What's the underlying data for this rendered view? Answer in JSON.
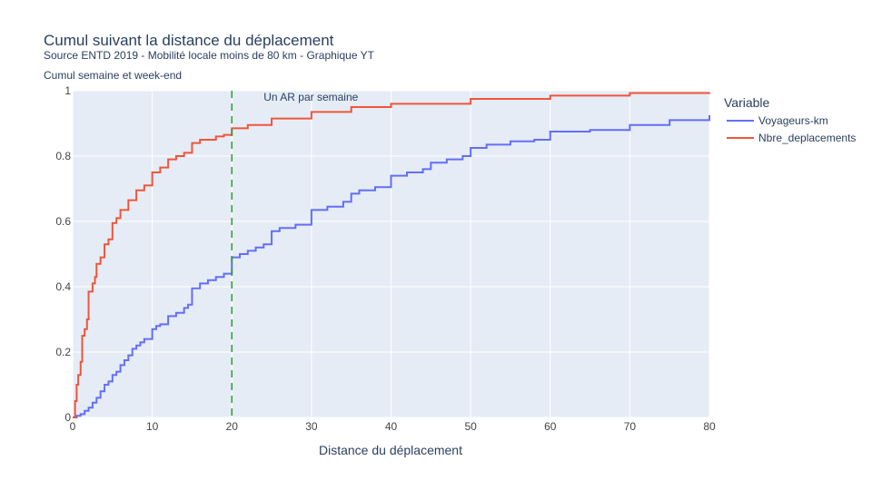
{
  "chart_data": {
    "type": "line",
    "title": "Cumul suivant la distance du déplacement",
    "subtitle": "Source ENTD 2019 - Mobilité locale moins de 80 km - Graphique YT",
    "y_label": "Cumul semaine et week-end",
    "x_label": "Distance du déplacement",
    "legend_title": "Variable",
    "line_shape": "hv",
    "grid": true,
    "xlim": [
      0,
      80
    ],
    "xticks": [
      0,
      10,
      20,
      30,
      40,
      50,
      60,
      70,
      80
    ],
    "ylim": [
      0,
      1
    ],
    "yticks": [
      0,
      0.2,
      0.4,
      0.6,
      0.8,
      1
    ],
    "vline": {
      "x": 20,
      "color": "#2ca02c",
      "label": "Un AR par semaine"
    },
    "series": [
      {
        "name": "Voyageurs-km",
        "color": "#636efa",
        "x": [
          0,
          0.5,
          1,
          1.5,
          2,
          2.5,
          3,
          3.5,
          4,
          4.5,
          5,
          5.5,
          6,
          6.5,
          7,
          7.5,
          8,
          8.5,
          9,
          10,
          10.5,
          11,
          12,
          13,
          14,
          14.5,
          15,
          16,
          17,
          18,
          19,
          20,
          21,
          22,
          23,
          24,
          25,
          26,
          28,
          30,
          32,
          34,
          35,
          36,
          38,
          40,
          42,
          44,
          45,
          47,
          49,
          50,
          52,
          55,
          58,
          60,
          65,
          70,
          75,
          80
        ],
        "values": [
          0,
          0.005,
          0.01,
          0.02,
          0.03,
          0.045,
          0.06,
          0.08,
          0.1,
          0.11,
          0.13,
          0.14,
          0.16,
          0.175,
          0.19,
          0.21,
          0.22,
          0.23,
          0.24,
          0.27,
          0.28,
          0.285,
          0.31,
          0.32,
          0.335,
          0.345,
          0.395,
          0.41,
          0.42,
          0.43,
          0.44,
          0.49,
          0.5,
          0.51,
          0.52,
          0.53,
          0.57,
          0.58,
          0.59,
          0.635,
          0.645,
          0.66,
          0.685,
          0.695,
          0.705,
          0.74,
          0.75,
          0.76,
          0.78,
          0.79,
          0.8,
          0.825,
          0.835,
          0.845,
          0.85,
          0.875,
          0.88,
          0.895,
          0.91,
          0.925
        ]
      },
      {
        "name": "Nbre_deplacements",
        "color": "#ef553b",
        "x": [
          0,
          0.3,
          0.5,
          0.7,
          1,
          1.2,
          1.5,
          1.8,
          2,
          2.5,
          2.8,
          3,
          3.5,
          4,
          4.5,
          5,
          5.5,
          6,
          7,
          8,
          9,
          10,
          11,
          12,
          13,
          14,
          15,
          16,
          18,
          19,
          20,
          22,
          25,
          30,
          35,
          40,
          50,
          60,
          70,
          80
        ],
        "values": [
          0,
          0.05,
          0.1,
          0.13,
          0.17,
          0.25,
          0.27,
          0.3,
          0.385,
          0.41,
          0.43,
          0.47,
          0.49,
          0.53,
          0.545,
          0.595,
          0.61,
          0.635,
          0.665,
          0.695,
          0.71,
          0.75,
          0.765,
          0.79,
          0.8,
          0.81,
          0.84,
          0.85,
          0.86,
          0.865,
          0.885,
          0.895,
          0.915,
          0.935,
          0.95,
          0.96,
          0.975,
          0.985,
          0.993,
          0.995
        ]
      }
    ]
  }
}
